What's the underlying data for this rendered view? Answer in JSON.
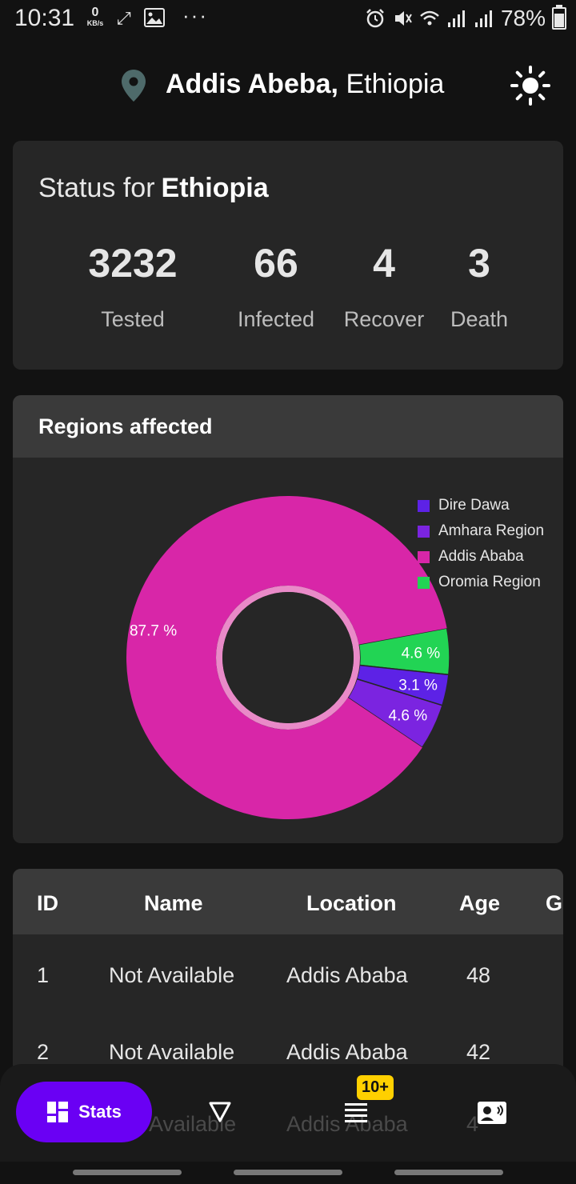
{
  "status_bar": {
    "time": "10:31",
    "net_speed_value": "0",
    "net_speed_unit": "KB/s",
    "dots": "···",
    "battery": "78%"
  },
  "header": {
    "city": "Addis Abeba,",
    "country": "Ethiopia"
  },
  "status": {
    "prefix": "Status for",
    "country": "Ethiopia",
    "stats": [
      {
        "value": "3232",
        "label": "Tested"
      },
      {
        "value": "66",
        "label": "Infected"
      },
      {
        "value": "4",
        "label": "Recover"
      },
      {
        "value": "3",
        "label": "Death"
      }
    ]
  },
  "regions": {
    "title": "Regions affected"
  },
  "chart_data": {
    "type": "pie",
    "donut": true,
    "slices": [
      {
        "label": "Oromia Region",
        "value": 4.6,
        "display": "4.6 %",
        "color": "#22d454"
      },
      {
        "label": "Dire Dawa",
        "value": 3.1,
        "display": "3.1 %",
        "color": "#5d22e6"
      },
      {
        "label": "Amhara Region",
        "value": 4.6,
        "display": "4.6 %",
        "color": "#7b24e0"
      },
      {
        "label": "Addis Ababa",
        "value": 87.7,
        "display": "87.7 %",
        "color": "#d826a8"
      }
    ],
    "legend": [
      "Dire Dawa",
      "Amhara Region",
      "Addis Ababa",
      "Oromia Region"
    ],
    "legend_position": "top-right"
  },
  "table": {
    "headers": [
      "ID",
      "Name",
      "Location",
      "Age",
      "Ge"
    ],
    "rows": [
      [
        "1",
        "Not Available",
        "Addis Ababa",
        "48"
      ],
      [
        "2",
        "Not Available",
        "Addis Ababa",
        "42"
      ]
    ],
    "ghost_row": [
      "Available",
      "Addis Ababa",
      "4"
    ]
  },
  "nav": {
    "stats_label": "Stats",
    "badge": "10+"
  }
}
